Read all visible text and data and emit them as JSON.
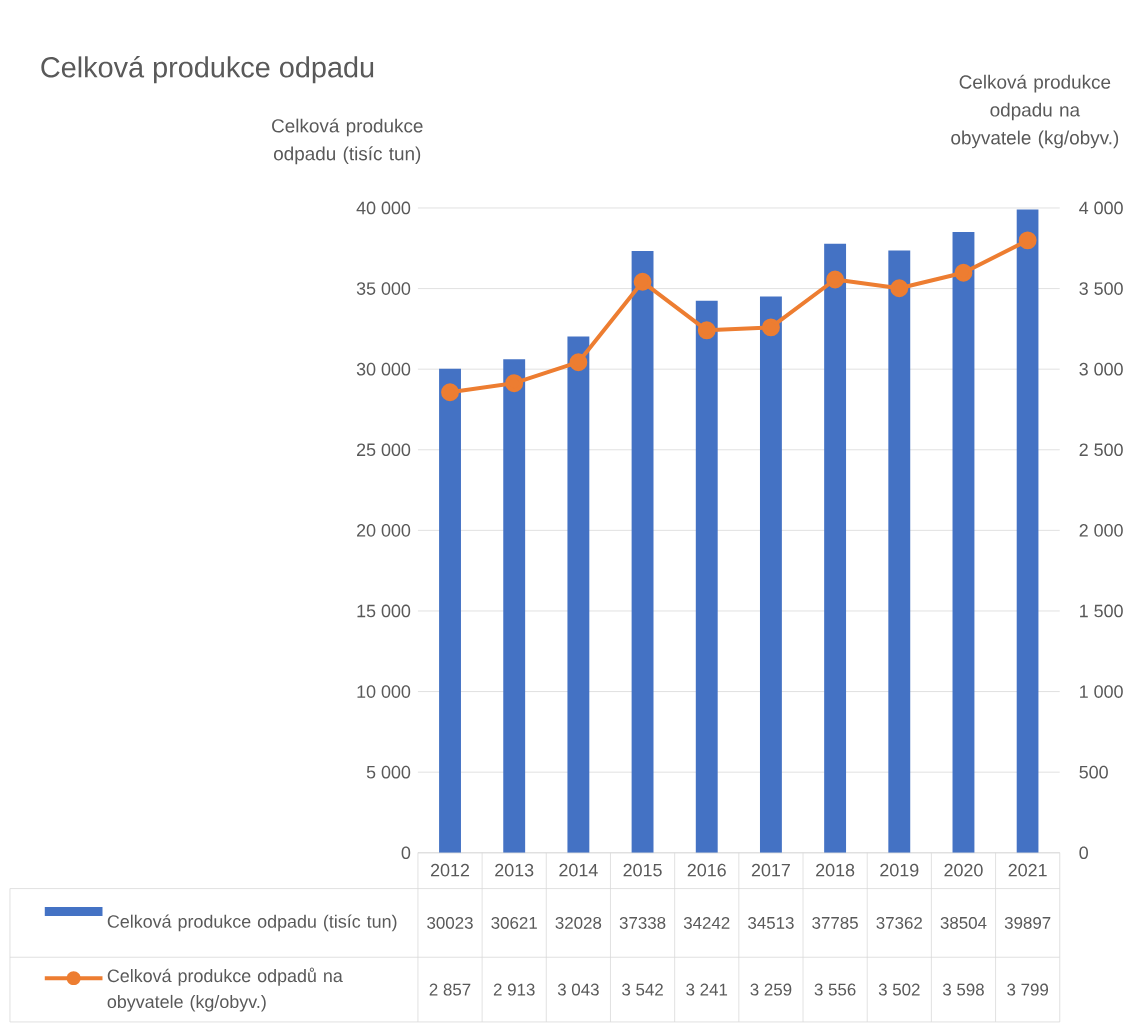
{
  "chart_data": {
    "type": "bar",
    "title": "Celková produkce odpadu",
    "ylabel": "Celková produkce odpadu (tisíc tun)",
    "y2label": "Celková produkce odpadu na obyvatele (kg/obyv.)",
    "categories": [
      "2012",
      "2013",
      "2014",
      "2015",
      "2016",
      "2017",
      "2018",
      "2019",
      "2020",
      "2021"
    ],
    "series": [
      {
        "name": "Celková produkce odpadu (tisíc tun)",
        "color": "#4472c4",
        "values": [
          30023,
          30621,
          32028,
          37338,
          34242,
          34513,
          37785,
          37362,
          38504,
          39897
        ],
        "value_labels": [
          "30023",
          "30621",
          "32028",
          "37338",
          "34242",
          "34513",
          "37785",
          "37362",
          "38504",
          "39897"
        ]
      },
      {
        "name": "Celková produkce odpadů na obyvatele (kg/obyv.)",
        "type": "line",
        "axis": "y2",
        "marker": "circle",
        "color": "#ed7d31",
        "values": [
          2857,
          2913,
          3043,
          3542,
          3241,
          3259,
          3556,
          3502,
          3598,
          3799
        ],
        "value_labels": [
          "2 857",
          "2 913",
          "3 043",
          "3 542",
          "3 241",
          "3 259",
          "3 556",
          "3 502",
          "3 598",
          "3 799"
        ]
      }
    ],
    "ylim": [
      0,
      40000
    ],
    "yticks": [
      0,
      {
        "value": 5000,
        "label": "5 000"
      },
      {
        "value": 10000,
        "label": "10 000"
      },
      {
        "value": 15000,
        "label": "15 000"
      },
      {
        "value": 20000,
        "label": "20 000"
      },
      {
        "value": 25000,
        "label": "25 000"
      },
      {
        "value": 30000,
        "label": "30 000"
      },
      {
        "value": 35000,
        "label": "35 000"
      },
      {
        "value": 40000,
        "label": "40 000"
      }
    ],
    "y2lim": [
      0,
      4000
    ],
    "y2ticks": [
      0,
      500,
      {
        "value": 1000,
        "label": "1 000"
      },
      {
        "value": 1500,
        "label": "1 500"
      },
      {
        "value": 2000,
        "label": "2 000"
      },
      {
        "value": 2500,
        "label": "2 500"
      },
      {
        "value": 3000,
        "label": "3 000"
      },
      {
        "value": 3500,
        "label": "3 500"
      },
      {
        "value": 4000,
        "label": "4 000"
      }
    ],
    "grid": "y",
    "legend": "bottom"
  }
}
